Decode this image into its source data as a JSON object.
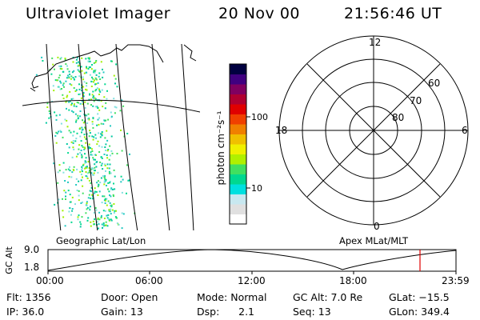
{
  "header": {
    "title": "Ultraviolet Imager",
    "date": "20 Nov 00",
    "time": "21:56:46 UT"
  },
  "colorbar": {
    "label": "photon cm⁻²s⁻¹",
    "ticks": [
      "100",
      "10"
    ],
    "colors": [
      "#ffffff",
      "#e0e0e0",
      "#c8e8f0",
      "#00e0e0",
      "#00d890",
      "#40e060",
      "#b0f000",
      "#f0f000",
      "#f0c000",
      "#f08000",
      "#f04000",
      "#e00000",
      "#b00030",
      "#800060",
      "#400080",
      "#000040"
    ]
  },
  "polar_plot": {
    "mlt_labels": [
      "12",
      "18",
      "6",
      "0"
    ],
    "lat_labels": [
      "60",
      "70",
      "80"
    ]
  },
  "map": {
    "projection_label": "Geographic Lat/Lon",
    "apex_label": "Apex MLat/MLT",
    "aurora_color": "#00c8a0"
  },
  "alt_plot": {
    "axis_label": "GC Alt",
    "y_ticks": [
      "9.0",
      "1.8"
    ],
    "x_ticks": [
      "00:00",
      "06:00",
      "12:00",
      "18:00",
      "23:59"
    ],
    "current_marker_color": "#e00000"
  },
  "info": {
    "flt": "Flt: 1356",
    "ip": "IP: 36.0",
    "door": "Door: Open",
    "gain": "Gain: 13",
    "mode": "Mode: Normal",
    "dsp": "Dsp:      2.1",
    "gc_alt": "GC Alt: 7.0 Re",
    "seq": "Seq: 13",
    "glat": "GLat: −15.5",
    "glon": "GLon: 349.4"
  }
}
